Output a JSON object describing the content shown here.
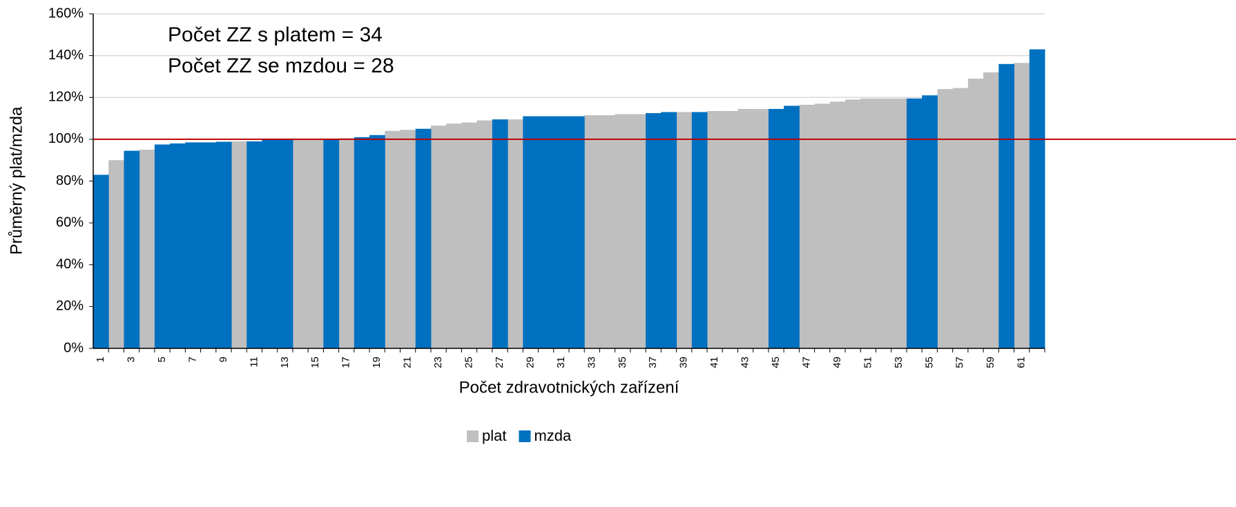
{
  "chart_data": {
    "type": "bar",
    "categories": [
      "1",
      null,
      "3",
      null,
      "5",
      null,
      "7",
      null,
      "9",
      null,
      "11",
      null,
      "13",
      null,
      "15",
      null,
      "17",
      null,
      "19",
      null,
      "21",
      null,
      "23",
      null,
      "25",
      null,
      "27",
      null,
      "29",
      null,
      "31",
      null,
      "33",
      null,
      "35",
      null,
      "37",
      null,
      "39",
      null,
      "41",
      null,
      "43",
      null,
      "45",
      null,
      "47",
      null,
      "49",
      null,
      "51",
      null,
      "53",
      null,
      "55",
      null,
      "57",
      null,
      "59",
      null,
      "61",
      null
    ],
    "series": [
      {
        "name": "plat",
        "color": "#bfbfbf",
        "values": [
          null,
          90,
          null,
          95,
          null,
          null,
          null,
          null,
          null,
          99,
          null,
          null,
          null,
          100,
          100,
          null,
          100.5,
          null,
          null,
          104,
          104.5,
          null,
          106.5,
          107.5,
          108,
          109,
          null,
          109.5,
          null,
          null,
          null,
          null,
          111.5,
          111.5,
          112,
          112,
          null,
          null,
          113,
          null,
          113.5,
          113.5,
          114.5,
          114.5,
          null,
          null,
          116.5,
          117,
          118,
          119,
          119.5,
          119.5,
          119.5,
          null,
          null,
          124,
          124.5,
          129,
          132,
          null,
          136.5,
          null
        ]
      },
      {
        "name": "mzda",
        "color": "#0070c0",
        "values": [
          83,
          null,
          94.5,
          null,
          97.5,
          98,
          98.5,
          98.5,
          98.8,
          null,
          99,
          100,
          100,
          null,
          null,
          100,
          null,
          101,
          102,
          null,
          null,
          105,
          null,
          null,
          null,
          null,
          109.5,
          null,
          111,
          111,
          111,
          111,
          null,
          null,
          null,
          null,
          112.5,
          113,
          null,
          113,
          null,
          null,
          null,
          null,
          114.5,
          116,
          null,
          null,
          null,
          null,
          null,
          null,
          null,
          119.5,
          121,
          null,
          null,
          null,
          null,
          136,
          null,
          143
        ]
      }
    ],
    "ylim": [
      0,
      160
    ],
    "yticks": [
      {
        "value": 0,
        "label": "0%"
      },
      {
        "value": 20,
        "label": "20%"
      },
      {
        "value": 40,
        "label": "40%"
      },
      {
        "value": 60,
        "label": "60%"
      },
      {
        "value": 80,
        "label": "80%"
      },
      {
        "value": 100,
        "label": "100%"
      },
      {
        "value": 120,
        "label": "120%"
      },
      {
        "value": 140,
        "label": "140%"
      },
      {
        "value": 160,
        "label": "160%"
      }
    ],
    "grid": true,
    "y_label": "Průměrný plat/mzda",
    "x_label": "Počet zdravotnických zařízení",
    "annotations": [
      "Počet ZZ s platem = 34",
      "Počet ZZ se mzdou = 28"
    ],
    "reference_line": {
      "value": 100,
      "color": "#c00000"
    },
    "legend": "bottom"
  }
}
